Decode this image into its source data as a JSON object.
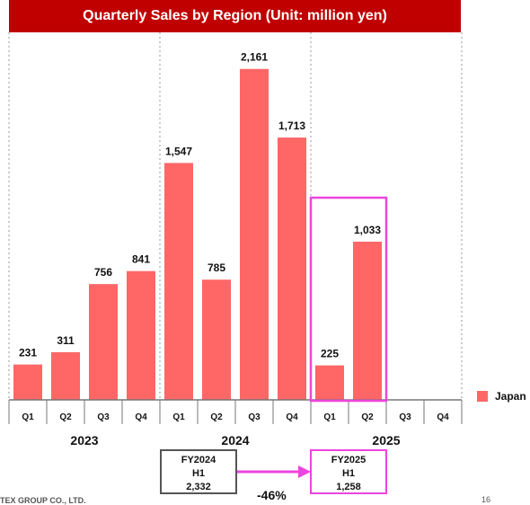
{
  "colors": {
    "title_bg": "#c00000",
    "bar": "#ff6666",
    "highlight": "#ee44dd",
    "box_border": "#555555"
  },
  "chart_data": {
    "type": "bar",
    "title": "Quarterly Sales by Region (Unit: million yen)",
    "legend_position": "right",
    "ylim": [
      0,
      2400
    ],
    "grid": false,
    "groups": [
      {
        "label": "2023",
        "categories": [
          "Q1",
          "Q2",
          "Q3",
          "Q4"
        ]
      },
      {
        "label": "2024",
        "categories": [
          "Q1",
          "Q2",
          "Q3",
          "Q4"
        ]
      },
      {
        "label": "2025",
        "categories": [
          "Q1",
          "Q2",
          "Q3",
          "Q4"
        ]
      }
    ],
    "series": [
      {
        "name": "Japan",
        "values": [
          231,
          311,
          756,
          841,
          1547,
          785,
          2161,
          1713,
          225,
          1033,
          null,
          null
        ],
        "labels": [
          "231",
          "311",
          "756",
          "841",
          "1,547",
          "785",
          "2,161",
          "1,713",
          "225",
          "1,033",
          "",
          ""
        ]
      }
    ]
  },
  "comparison": {
    "left": {
      "line1": "FY2024",
      "line2": "H1",
      "value": "2,332"
    },
    "right": {
      "line1": "FY2025",
      "line2": "H1",
      "value": "1,258"
    },
    "change": "-46%"
  },
  "footer": {
    "company": "TEX GROUP CO., LTD.",
    "page": "16"
  }
}
